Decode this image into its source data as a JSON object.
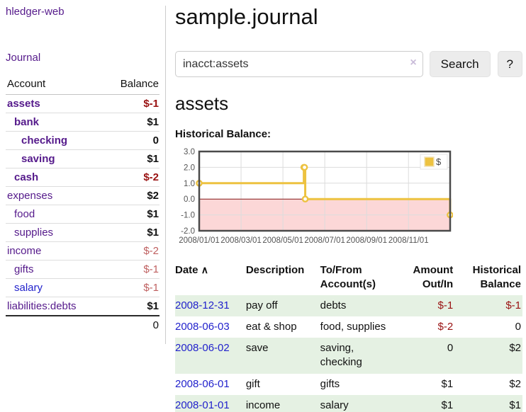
{
  "sidebar": {
    "app_title": "hledger-web",
    "journal_link": "Journal",
    "accounts": {
      "headers": {
        "account": "Account",
        "balance": "Balance"
      },
      "rows": [
        {
          "label": "assets",
          "indent": 1,
          "bold": true,
          "balance": "$-1",
          "neg": true
        },
        {
          "label": "bank",
          "indent": 2,
          "bold": true,
          "balance": "$1"
        },
        {
          "label": "checking",
          "indent": 3,
          "bold": true,
          "balance": "0"
        },
        {
          "label": "saving",
          "indent": 3,
          "bold": true,
          "balance": "$1"
        },
        {
          "label": "cash",
          "indent": 2,
          "bold": true,
          "balance": "$-2",
          "neg": true
        },
        {
          "label": "expenses",
          "indent": 1,
          "bold": false,
          "balance": "$2"
        },
        {
          "label": "food",
          "indent": 2,
          "bold": false,
          "balance": "$1"
        },
        {
          "label": "supplies",
          "indent": 2,
          "bold": false,
          "balance": "$1"
        },
        {
          "label": "income",
          "indent": 1,
          "bold": false,
          "balance": "$-2",
          "neg": true
        },
        {
          "label": "gifts",
          "indent": 2,
          "bold": false,
          "balance": "$-1",
          "neg": true
        },
        {
          "label": "salary",
          "indent": 2,
          "bold": false,
          "balance": "$-1",
          "neg": true,
          "blue": true
        },
        {
          "label": "liabilities:debts",
          "indent": 1,
          "bold": false,
          "balance": "$1"
        }
      ],
      "total": "0"
    }
  },
  "main": {
    "title": "sample.journal",
    "search": {
      "value": "inacct:assets",
      "clear_icon": "×",
      "button_label": "Search",
      "help_label": "?"
    },
    "account_heading": "assets",
    "chart_label": "Historical Balance:"
  },
  "chart_data": {
    "type": "line",
    "title": "Historical Balance",
    "style": "step-after with point markers",
    "series": [
      {
        "name": "$",
        "color": "#edc240",
        "points": [
          {
            "date": "2008-01-01",
            "y": 1
          },
          {
            "date": "2008-06-01",
            "y": 2
          },
          {
            "date": "2008-06-02",
            "y": 2
          },
          {
            "date": "2008-06-03",
            "y": 0
          },
          {
            "date": "2008-12-31",
            "y": -1
          }
        ]
      }
    ],
    "x_ticks": [
      {
        "month_index": 0,
        "label": "2008/01/01"
      },
      {
        "month_index": 2,
        "label": "2008/03/01"
      },
      {
        "month_index": 4,
        "label": "2008/05/01"
      },
      {
        "month_index": 6,
        "label": "2008/07/01"
      },
      {
        "month_index": 8,
        "label": "2008/09/01"
      },
      {
        "month_index": 10,
        "label": "2008/11/01"
      }
    ],
    "y_ticks": [
      {
        "v": 3,
        "label": "3.0"
      },
      {
        "v": 2,
        "label": "2.0"
      },
      {
        "v": 1,
        "label": "1.0"
      },
      {
        "v": 0,
        "label": "0.0"
      },
      {
        "v": -1,
        "label": "-1.0"
      },
      {
        "v": -2,
        "label": "-2.0"
      }
    ],
    "xlim_months": [
      0,
      11.99
    ],
    "ylim": [
      -2,
      3
    ],
    "grid": true,
    "grid_color": "#dcdcdc",
    "border_color": "#4a4a4a",
    "tick_text_color": "#545454",
    "negative_region_color": "#fcd7d7",
    "zero_line_color": "#8b1a1a",
    "legend": {
      "label": "$",
      "position": "top-right"
    }
  },
  "register": {
    "headers": {
      "date": "Date",
      "sort_arrow": "∧",
      "description": "Description",
      "accounts": "To/From Account(s)",
      "amount": "Amount Out/In",
      "balance": "Historical Balance"
    },
    "rows": [
      {
        "date": "2008-12-31",
        "description": "pay off",
        "accounts": "debts",
        "amount": "$-1",
        "balance": "$-1"
      },
      {
        "date": "2008-06-03",
        "description": "eat & shop",
        "accounts": "food, supplies",
        "amount": "$-2",
        "balance": "0"
      },
      {
        "date": "2008-06-02",
        "description": "save",
        "accounts": "saving, checking",
        "amount": "0",
        "balance": "$2"
      },
      {
        "date": "2008-06-01",
        "description": "gift",
        "accounts": "gifts",
        "amount": "$1",
        "balance": "$2"
      },
      {
        "date": "2008-01-01",
        "description": "income",
        "accounts": "salary",
        "amount": "$1",
        "balance": "$1"
      }
    ]
  }
}
